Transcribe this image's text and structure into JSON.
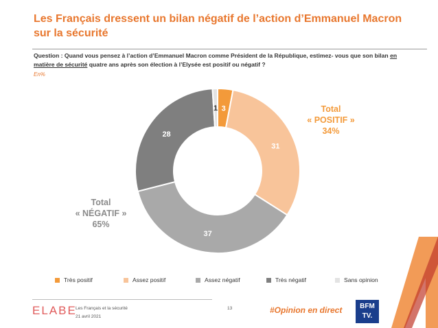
{
  "header": {
    "title": "Les Français dressent un bilan négatif de l’action d’Emmanuel Macron sur la sécurité",
    "question_pre": "Question : Quand vous pensez à l’action d’Emmanuel Macron comme Président de la République, estimez- vous que son bilan ",
    "question_underlined": "en matière de sécurité",
    "question_post": " quatre ans après son élection à l’Elysée est positif ou négatif ?",
    "unit": "En%"
  },
  "chart_data": {
    "type": "pie",
    "subtype": "donut",
    "series": [
      {
        "name": "Très positif",
        "value": 3,
        "color": "#f39a3a"
      },
      {
        "name": "Assez positif",
        "value": 31,
        "color": "#f8c49a"
      },
      {
        "name": "Assez négatif",
        "value": 37,
        "color": "#a9a9a9"
      },
      {
        "name": "Très négatif",
        "value": 28,
        "color": "#7f7f7f"
      },
      {
        "name": "Sans opinion",
        "value": 1,
        "color": "#e3e3e3"
      }
    ],
    "totals": {
      "positive": {
        "label_line1": "Total",
        "label_line2": "« POSITIF »",
        "value": "34%"
      },
      "negative": {
        "label_line1": "Total",
        "label_line2": "« NÉGATIF »",
        "value": "65%"
      }
    }
  },
  "footer": {
    "logo": "ELABE",
    "survey_title": "Les Français et la sécurité",
    "date": "21 avril 2021",
    "page": "13",
    "hashtag": "#Opinion en direct",
    "partner_line1": "BFM",
    "partner_line2": "TV."
  }
}
